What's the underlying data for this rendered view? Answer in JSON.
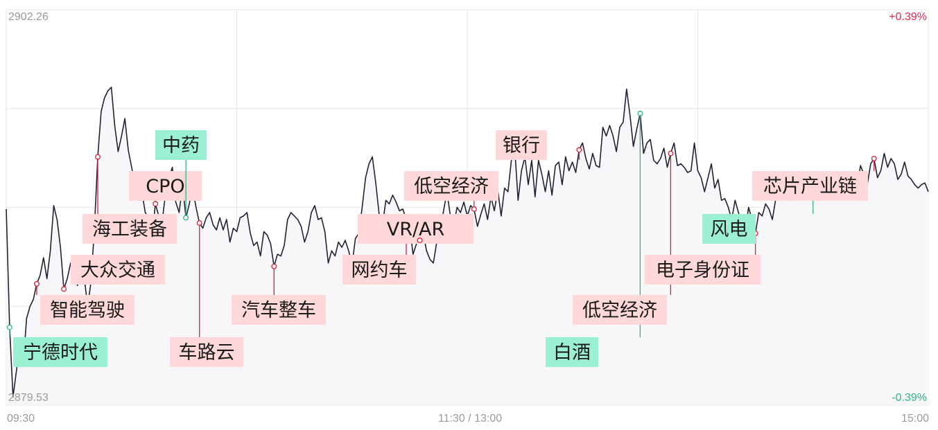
{
  "chart_data": {
    "type": "line",
    "title": "",
    "xlabel": "",
    "ylabel": "",
    "ylim": [
      2879.53,
      2902.26
    ],
    "y_max_label": "2902.26",
    "y_min_label": "2879.53",
    "pct_max_label": "+0.39%",
    "pct_min_label": "-0.39%",
    "x_tick_labels": [
      "09:30",
      "11:30 / 13:00",
      "15:00"
    ],
    "grid": true,
    "colors": {
      "line": "#1f2233",
      "grid": "#e6e6e6",
      "positive_tag_bg": "#ffd9d9",
      "negative_tag_bg": "#9cf0d2",
      "positive_pin": "#d2213a",
      "negative_pin": "#2fb38a"
    },
    "series": [
      {
        "values": [
          2890.8,
          2884.0,
          2880.0,
          2881.5,
          2883.0,
          2881.8,
          2884.5,
          2885.2,
          2885.6,
          2886.5,
          2887.0,
          2888.0,
          2886.8,
          2888.4,
          2891.0,
          2890.2,
          2888.6,
          2886.2,
          2886.8,
          2887.7,
          2887.2,
          2886.4,
          2887.5,
          2886.9,
          2885.2,
          2886.6,
          2889.6,
          2893.8,
          2896.4,
          2897.2,
          2897.6,
          2897.8,
          2895.6,
          2894.1,
          2895.0,
          2896.0,
          2894.2,
          2893.2,
          2892.1,
          2891.4,
          2891.8,
          2890.6,
          2890.3,
          2889.2,
          2891.1,
          2890.4,
          2890.1,
          2891.7,
          2892.6,
          2893.2,
          2891.2,
          2890.6,
          2892.2,
          2890.3,
          2891.1,
          2892.0,
          2890.9,
          2890.0,
          2889.7,
          2890.3,
          2890.6,
          2889.9,
          2889.6,
          2890.3,
          2889.6,
          2890.2,
          2888.9,
          2889.7,
          2889.5,
          2890.3,
          2890.4,
          2890.6,
          2889.4,
          2888.7,
          2888.9,
          2888.1,
          2889.5,
          2889.3,
          2888.8,
          2887.5,
          2888.2,
          2888.1,
          2888.7,
          2890.2,
          2890.6,
          2890.4,
          2890.2,
          2889.8,
          2888.9,
          2889.5,
          2890.6,
          2891.0,
          2890.2,
          2890.3,
          2889.5,
          2887.7,
          2888.4,
          2888.1,
          2888.9,
          2888.6,
          2889.0,
          2888.4,
          2887.6,
          2889.1,
          2889.4,
          2890.9,
          2892.6,
          2893.4,
          2893.8,
          2892.3,
          2890.5,
          2889.9,
          2891.3,
          2891.1,
          2891.6,
          2891.2,
          2890.7,
          2890.8,
          2890.2,
          2889.8,
          2888.2,
          2888.8,
          2889.0,
          2889.4,
          2888.4,
          2887.9,
          2887.7,
          2888.9,
          2889.6,
          2890.7,
          2891.8,
          2890.4,
          2889.9,
          2890.9,
          2890.6,
          2891.2,
          2890.4,
          2891.0,
          2890.8,
          2889.8,
          2890.5,
          2891.1,
          2890.2,
          2891.5,
          2890.7,
          2891.9,
          2890.4,
          2892.0,
          2891.8,
          2893.6,
          2894.3,
          2891.3,
          2893.0,
          2893.8,
          2892.2,
          2893.6,
          2891.5,
          2893.6,
          2892.8,
          2891.8,
          2893.0,
          2891.6,
          2893.3,
          2893.5,
          2892.2,
          2893.8,
          2893.0,
          2893.5,
          2892.9,
          2894.2,
          2894.6,
          2893.7,
          2893.1,
          2894.0,
          2893.3,
          2893.2,
          2895.5,
          2895.0,
          2895.6,
          2895.0,
          2894.1,
          2895.5,
          2895.8,
          2897.7,
          2896.2,
          2894.4,
          2895.4,
          2896.3,
          2894.0,
          2894.6,
          2894.8,
          2893.6,
          2893.4,
          2893.7,
          2894.3,
          2893.2,
          2894.0,
          2894.6,
          2893.3,
          2893.4,
          2893.2,
          2892.9,
          2893.0,
          2894.6,
          2893.0,
          2892.6,
          2891.8,
          2892.6,
          2893.4,
          2892.0,
          2892.5,
          2891.3,
          2891.4,
          2890.9,
          2890.2,
          2891.3,
          2890.6,
          2889.9,
          2889.6,
          2890.9,
          2890.2,
          2889.4,
          2890.6,
          2890.4,
          2891.1,
          2890.8,
          2890.2,
          2891.4,
          2891.9,
          2891.6,
          2891.8,
          2891.3,
          2891.6,
          2892.8,
          2892.1,
          2892.4,
          2891.9,
          2892.6,
          2891.7,
          2891.9,
          2891.4,
          2891.8,
          2892.2,
          2891.6,
          2892.0,
          2891.8,
          2892.4,
          2892.0,
          2892.9,
          2892.3,
          2892.7,
          2892.1,
          2893.3,
          2892.8,
          2892.2,
          2893.4,
          2893.7,
          2892.6,
          2893.0,
          2894.0,
          2893.2,
          2893.7,
          2893.4,
          2892.5,
          2892.8,
          2893.5,
          2892.7,
          2892.5,
          2892.2,
          2892.0,
          2892.2,
          2892.3,
          2891.8
        ]
      }
    ],
    "annotations": [
      {
        "label": "宁德时代",
        "index": 1,
        "kind": "negative"
      },
      {
        "label": "智能驾驶",
        "index": 9,
        "kind": "positive"
      },
      {
        "label": "大众交通",
        "index": 17,
        "kind": "positive"
      },
      {
        "label": "海工装备",
        "index": 27,
        "kind": "positive"
      },
      {
        "label": "CPO",
        "index": 44,
        "kind": "positive"
      },
      {
        "label": "中药",
        "index": 53,
        "kind": "negative"
      },
      {
        "label": "车路云",
        "index": 57,
        "kind": "positive"
      },
      {
        "label": "汽车整车",
        "index": 79,
        "kind": "positive"
      },
      {
        "label": "网约车",
        "index": 118,
        "kind": "positive"
      },
      {
        "label": "VR/AR",
        "index": 122,
        "kind": "positive"
      },
      {
        "label": "低空经济",
        "index": 138,
        "kind": "positive"
      },
      {
        "label": "银行",
        "index": 169,
        "kind": "positive"
      },
      {
        "label": "白酒",
        "index": 187,
        "kind": "negative"
      },
      {
        "label": "低空经济",
        "index": 196,
        "kind": "positive"
      },
      {
        "label": "电子身份证",
        "index": 221,
        "kind": "positive"
      },
      {
        "label": "风电",
        "index": 238,
        "kind": "negative"
      },
      {
        "label": "芯片产业链",
        "index": 256,
        "kind": "positive"
      }
    ]
  }
}
